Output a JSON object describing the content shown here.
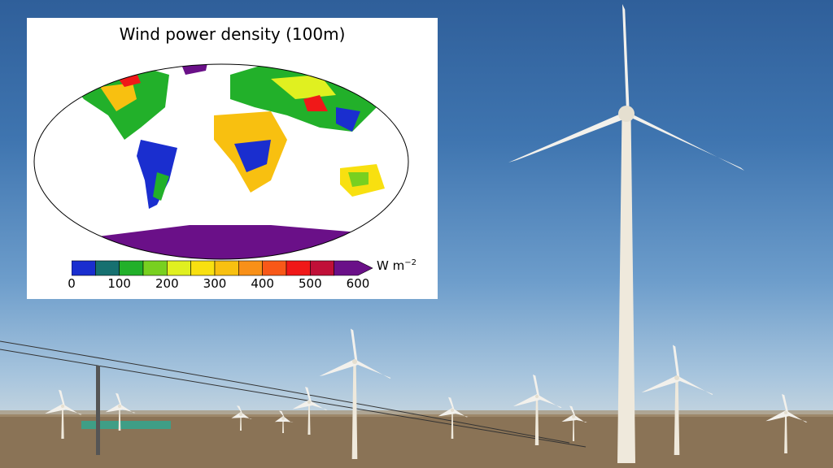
{
  "figure": {
    "title": "Wind power density (100m)",
    "colorbar": {
      "ticks": [
        "0",
        "100",
        "200",
        "300",
        "400",
        "500",
        "600"
      ],
      "unit": "W m",
      "unit_exponent": "−2",
      "min": 0,
      "max": 600,
      "extend": "max",
      "colors": [
        "#1a2ecf",
        "#167070",
        "#22b02a",
        "#78d020",
        "#e0f020",
        "#f8e010",
        "#f8c010",
        "#f89018",
        "#f85818",
        "#f01818",
        "#c01038",
        "#6a1088"
      ]
    }
  },
  "photo": {
    "subject": "wind-farm",
    "sky_color": "#3f75b0",
    "ground_color": "#8a7356"
  }
}
